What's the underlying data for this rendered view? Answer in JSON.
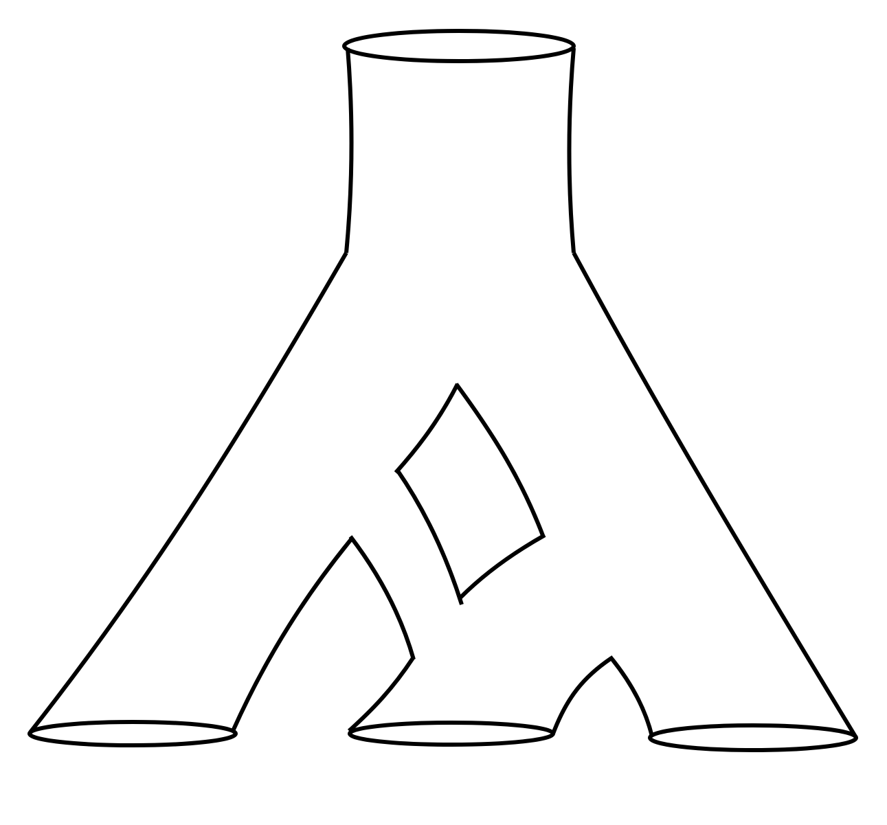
{
  "figure": {
    "description_visible_text": "",
    "colors": {
      "background": "#ffffff",
      "stroke": "#000000"
    },
    "shape": "surface-with-one-top-boundary-three-bottom-boundaries-and-interior-handle",
    "boundary_circles": 4,
    "holes": 1
  }
}
